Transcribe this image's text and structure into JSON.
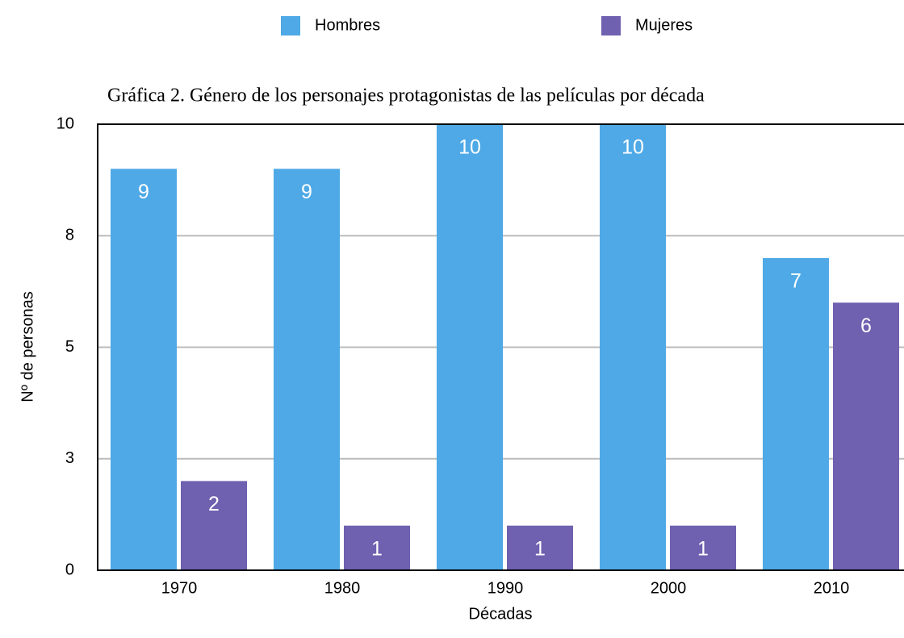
{
  "chart_data": {
    "type": "bar",
    "title": "Gráfica 2. Género de los personajes protagonistas de las películas por década",
    "x_label": "Décadas",
    "y_label": "Nº de personas",
    "categories": [
      "1970",
      "1980",
      "1990",
      "2000",
      "2010"
    ],
    "series": [
      {
        "name": "Hombres",
        "color": "#4ea9e6",
        "values": [
          9,
          9,
          10,
          10,
          7
        ]
      },
      {
        "name": "Mujeres",
        "color": "#6f60b0",
        "values": [
          2,
          1,
          1,
          1,
          6
        ]
      }
    ],
    "ylim": [
      0,
      10
    ],
    "yticks": [
      0,
      {
        "value": 2.5,
        "label": "3"
      },
      5,
      {
        "value": 7.5,
        "label": "8"
      },
      10
    ],
    "grid": true,
    "legend": "top"
  }
}
